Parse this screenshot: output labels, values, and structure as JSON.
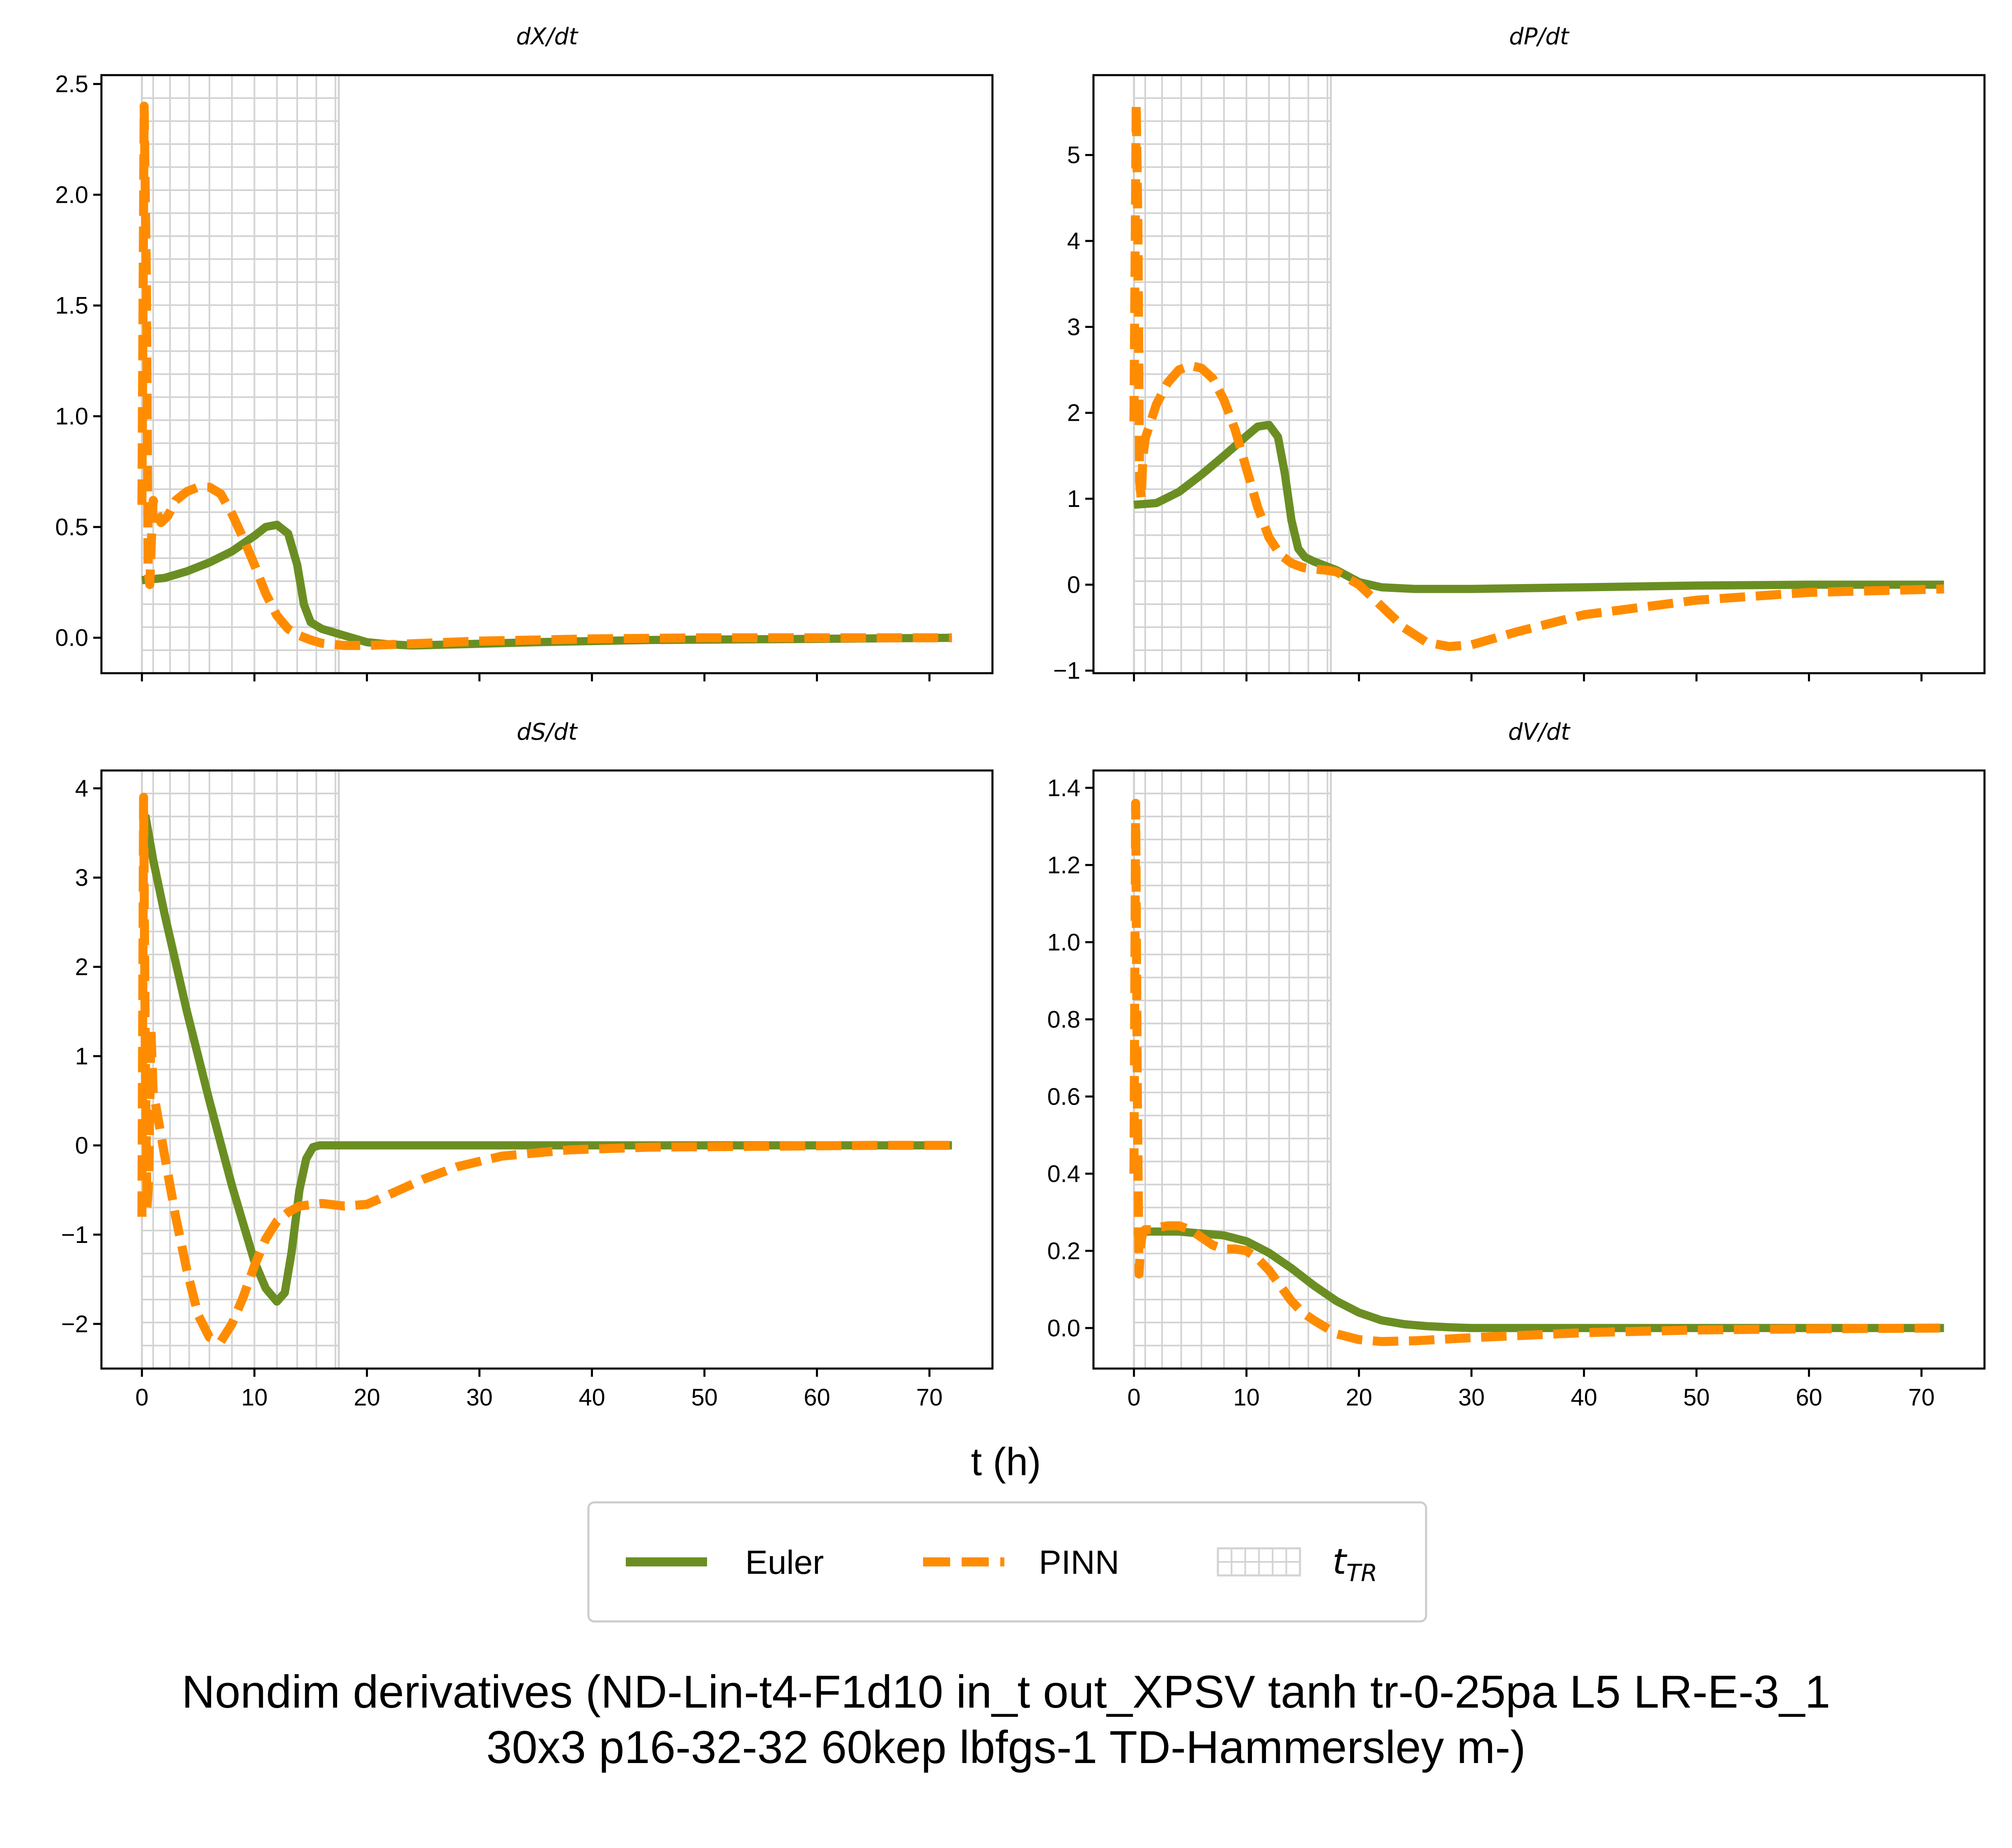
{
  "figure": {
    "suptitle_line1": "Nondim derivatives (ND-Lin-t4-F1d10 in_t out_XPSV tanh tr-0-25pa L5 LR-E-3_1",
    "suptitle_line2": "30x3 p16-32-32 60kep lbfgs-1 TD-Hammersley m-)",
    "xlabel": "t (h)"
  },
  "legend": {
    "placement": "lower-center",
    "euler_label": "Euler",
    "pinn_label": "PINN",
    "ttr_label_main": "t",
    "ttr_label_sub": "TR"
  },
  "colors": {
    "euler": "#6b8e23",
    "pinn": "#ff8c00",
    "grid_hatch": "#d3d3d3"
  },
  "chart_data": [
    {
      "type": "line",
      "title": "dX/dt",
      "xlim": [
        -3.6,
        75.6
      ],
      "ylim": [
        -0.16,
        2.54
      ],
      "xticks": [
        0,
        10,
        20,
        30,
        40,
        50,
        60,
        70
      ],
      "yticks": [
        0.0,
        0.5,
        1.0,
        1.5,
        2.0,
        2.5
      ],
      "ytick_labels": [
        "0.0",
        "0.5",
        "1.0",
        "1.5",
        "2.0",
        "2.5"
      ],
      "show_xtick_labels": false,
      "ttr_region": [
        0,
        17.5
      ],
      "series": [
        {
          "name": "Euler",
          "x": [
            0,
            2,
            4,
            6,
            8,
            10,
            11,
            12,
            13,
            13.8,
            14.4,
            15,
            16,
            18,
            20,
            22,
            24,
            28,
            35,
            45,
            60,
            72
          ],
          "y": [
            0.26,
            0.27,
            0.3,
            0.34,
            0.39,
            0.46,
            0.5,
            0.51,
            0.47,
            0.33,
            0.15,
            0.07,
            0.04,
            0.01,
            -0.02,
            -0.03,
            -0.035,
            -0.03,
            -0.02,
            -0.01,
            -0.005,
            0.0
          ]
        },
        {
          "name": "PINN",
          "x": [
            0,
            0.2,
            0.4,
            0.55,
            0.7,
            0.85,
            1.0,
            1.3,
            1.7,
            2.3,
            3,
            4,
            5,
            6,
            7,
            8,
            9,
            10,
            11,
            12,
            13,
            14,
            15,
            16,
            18,
            20,
            25,
            30,
            40,
            50,
            60,
            72
          ],
          "y": [
            0.6,
            2.4,
            1.6,
            0.3,
            0.24,
            0.45,
            0.62,
            0.57,
            0.52,
            0.55,
            0.62,
            0.66,
            0.68,
            0.68,
            0.65,
            0.56,
            0.45,
            0.33,
            0.2,
            0.1,
            0.04,
            0.01,
            -0.01,
            -0.025,
            -0.035,
            -0.035,
            -0.025,
            -0.015,
            -0.005,
            0.0,
            0.0,
            0.0
          ]
        }
      ]
    },
    {
      "type": "line",
      "title": "dP/dt",
      "xlim": [
        -3.6,
        75.6
      ],
      "ylim": [
        -1.03,
        5.93
      ],
      "xticks": [
        0,
        10,
        20,
        30,
        40,
        50,
        60,
        70
      ],
      "yticks": [
        -1,
        0,
        1,
        2,
        3,
        4,
        5
      ],
      "ytick_labels": [
        "−1",
        "0",
        "1",
        "2",
        "3",
        "4",
        "5"
      ],
      "show_xtick_labels": false,
      "ttr_region": [
        0,
        17.5
      ],
      "series": [
        {
          "name": "Euler",
          "x": [
            0,
            2,
            4,
            6,
            8,
            10,
            11,
            12,
            12.8,
            13.4,
            14,
            14.6,
            15.2,
            16,
            17,
            18,
            19,
            20,
            22,
            25,
            30,
            40,
            50,
            60,
            72
          ],
          "y": [
            0.93,
            0.95,
            1.08,
            1.28,
            1.5,
            1.73,
            1.84,
            1.86,
            1.72,
            1.3,
            0.75,
            0.42,
            0.32,
            0.27,
            0.22,
            0.17,
            0.1,
            0.03,
            -0.03,
            -0.05,
            -0.05,
            -0.03,
            -0.01,
            0.0,
            0.0
          ]
        },
        {
          "name": "PINN",
          "x": [
            0,
            0.2,
            0.35,
            0.5,
            0.65,
            0.8,
            1.0,
            1.5,
            2,
            3,
            4,
            5,
            6,
            7,
            8,
            9,
            10,
            11,
            12,
            13,
            14,
            15,
            16,
            17,
            18,
            20,
            22,
            24,
            26,
            28,
            30,
            34,
            40,
            50,
            60,
            72
          ],
          "y": [
            1.9,
            5.6,
            4.2,
            1.2,
            1.0,
            1.5,
            1.7,
            1.9,
            2.1,
            2.35,
            2.5,
            2.55,
            2.52,
            2.4,
            2.15,
            1.8,
            1.35,
            0.9,
            0.55,
            0.35,
            0.25,
            0.2,
            0.18,
            0.17,
            0.15,
            0.0,
            -0.25,
            -0.5,
            -0.67,
            -0.72,
            -0.7,
            -0.55,
            -0.35,
            -0.18,
            -0.09,
            -0.05
          ]
        }
      ]
    },
    {
      "type": "line",
      "title": "dS/dt",
      "xlim": [
        -3.6,
        75.6
      ],
      "ylim": [
        -2.5,
        4.2
      ],
      "xticks": [
        0,
        10,
        20,
        30,
        40,
        50,
        60,
        70
      ],
      "xtick_labels": [
        "0",
        "10",
        "20",
        "30",
        "40",
        "50",
        "60",
        "70"
      ],
      "yticks": [
        -2,
        -1,
        0,
        1,
        2,
        3,
        4
      ],
      "ytick_labels": [
        "−2",
        "−1",
        "0",
        "1",
        "2",
        "3",
        "4"
      ],
      "show_xtick_labels": true,
      "ttr_region": [
        0,
        17.5
      ],
      "series": [
        {
          "name": "Euler",
          "x": [
            0.3,
            1,
            2,
            4,
            6,
            8,
            10,
            11,
            12,
            12.7,
            13.3,
            14,
            14.6,
            15.2,
            15.8,
            17,
            20,
            30,
            40,
            50,
            60,
            72
          ],
          "y": [
            3.7,
            3.2,
            2.6,
            1.5,
            0.5,
            -0.45,
            -1.3,
            -1.6,
            -1.75,
            -1.65,
            -1.2,
            -0.5,
            -0.15,
            -0.02,
            0.0,
            0.0,
            0.0,
            0.0,
            0.0,
            0.0,
            0.0,
            0.0
          ]
        },
        {
          "name": "PINN",
          "x": [
            0,
            0.15,
            0.3,
            0.45,
            0.6,
            0.8,
            1.0,
            1.3,
            2,
            3,
            4,
            5,
            6,
            7,
            8,
            9,
            10,
            11,
            12,
            13,
            14,
            16,
            18,
            20,
            22,
            25,
            28,
            32,
            38,
            45,
            55,
            65,
            72
          ],
          "y": [
            -0.8,
            3.9,
            1.0,
            -0.7,
            -0.4,
            1.3,
            0.6,
            0.4,
            -0.1,
            -0.8,
            -1.4,
            -1.9,
            -2.15,
            -2.2,
            -2.0,
            -1.7,
            -1.35,
            -1.05,
            -0.85,
            -0.75,
            -0.68,
            -0.65,
            -0.68,
            -0.66,
            -0.55,
            -0.38,
            -0.24,
            -0.12,
            -0.05,
            -0.02,
            -0.01,
            0.0,
            0.0
          ]
        }
      ]
    },
    {
      "type": "line",
      "title": "dV/dt",
      "xlim": [
        -3.6,
        75.6
      ],
      "ylim": [
        -0.105,
        1.445
      ],
      "xticks": [
        0,
        10,
        20,
        30,
        40,
        50,
        60,
        70
      ],
      "xtick_labels": [
        "0",
        "10",
        "20",
        "30",
        "40",
        "50",
        "60",
        "70"
      ],
      "yticks": [
        0.0,
        0.2,
        0.4,
        0.6,
        0.8,
        1.0,
        1.2,
        1.4
      ],
      "ytick_labels": [
        "0.0",
        "0.2",
        "0.4",
        "0.6",
        "0.8",
        "1.0",
        "1.2",
        "1.4"
      ],
      "show_xtick_labels": true,
      "ttr_region": [
        0,
        17.5
      ],
      "series": [
        {
          "name": "Euler",
          "x": [
            0,
            2,
            4,
            6,
            8,
            10,
            12,
            14,
            16,
            18,
            20,
            22,
            24,
            26,
            28,
            30,
            35,
            40,
            50,
            60,
            72
          ],
          "y": [
            0.25,
            0.25,
            0.25,
            0.245,
            0.24,
            0.225,
            0.195,
            0.155,
            0.11,
            0.07,
            0.04,
            0.02,
            0.01,
            0.005,
            0.002,
            0.0,
            0.0,
            0.0,
            0.0,
            0.0,
            0.0
          ]
        },
        {
          "name": "PINN",
          "x": [
            0,
            0.15,
            0.3,
            0.45,
            0.6,
            0.8,
            1.0,
            1.5,
            2,
            3,
            4,
            5,
            6,
            7,
            8,
            9,
            10,
            11,
            12,
            13,
            14,
            15,
            16,
            18,
            20,
            22,
            25,
            30,
            40,
            50,
            60,
            72
          ],
          "y": [
            0.4,
            1.36,
            0.6,
            0.14,
            0.22,
            0.25,
            0.255,
            0.255,
            0.26,
            0.265,
            0.265,
            0.255,
            0.235,
            0.215,
            0.205,
            0.205,
            0.2,
            0.18,
            0.15,
            0.11,
            0.07,
            0.04,
            0.02,
            -0.015,
            -0.03,
            -0.035,
            -0.033,
            -0.025,
            -0.012,
            -0.005,
            -0.002,
            0.0
          ]
        }
      ]
    }
  ]
}
